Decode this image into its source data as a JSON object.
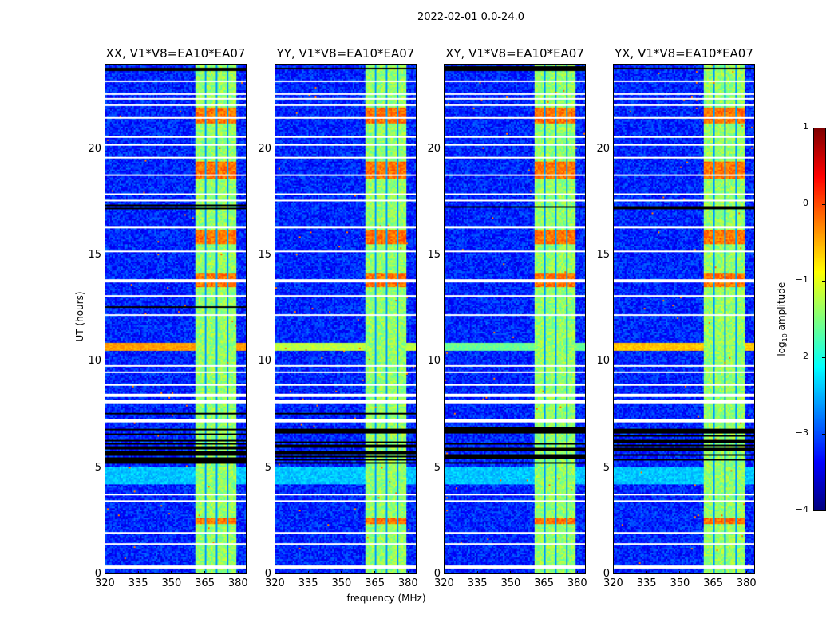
{
  "chart_data": {
    "type": "heatmap",
    "title": "2022-02-01 0.0-24.0",
    "xlabel": "frequency (MHz)",
    "ylabel": "UT (hours)",
    "xlim": [
      320,
      384
    ],
    "ylim": [
      0,
      24
    ],
    "xticks": [
      "320",
      "335",
      "350",
      "365",
      "380"
    ],
    "yticks": [
      "0",
      "5",
      "10",
      "15",
      "20"
    ],
    "panels": [
      {
        "title": "XX, V1*V8=EA10*EA07",
        "strong_line_level": -0.4
      },
      {
        "title": "YY, V1*V8=EA10*EA07",
        "strong_line_level": -1.2
      },
      {
        "title": "XY, V1*V8=EA10*EA07",
        "strong_line_level": -1.6
      },
      {
        "title": "YX, V1*V8=EA10*EA07",
        "strong_line_level": -0.6
      }
    ],
    "colorbar": {
      "label": "log10 amplitude",
      "label_main": "log",
      "label_sub": "10",
      "label_rest": " amplitude",
      "range": [
        -4,
        1
      ],
      "ticks": [
        "1",
        "0",
        "−1",
        "−2",
        "−3",
        "−4"
      ],
      "colormap": "jet"
    },
    "background_level": -3.2,
    "rfi_band_mhz": [
      360.5,
      379.5
    ],
    "rfi_band_level": -1.4,
    "rfi_subband_gaps_mhz": [
      365.5,
      370.5,
      375.5
    ],
    "strong_rfi_hours": [
      [
        2.3,
        2.6
      ],
      [
        13.5,
        14.2
      ],
      [
        15.5,
        16.2
      ],
      [
        21.2,
        22.0
      ],
      [
        18.6,
        19.4
      ]
    ],
    "broadband_rfi_hours": [
      [
        10.5,
        10.9
      ]
    ],
    "cyan_rows_hours": [
      [
        4.2,
        5.0
      ]
    ],
    "flagged_hours": [
      0.3,
      1.4,
      1.9,
      3.4,
      3.7,
      7.2,
      8.1,
      8.4,
      8.9,
      9.5,
      9.8,
      12.2,
      13.1,
      13.8,
      15.2,
      16.3,
      17.6,
      17.9,
      18.8,
      19.6,
      20.2,
      20.6,
      21.5,
      22.1,
      22.4,
      22.6,
      23.2
    ],
    "missing_hours": [
      [
        5.2,
        6.9
      ],
      [
        7.5,
        7.6
      ],
      [
        11.7,
        11.8
      ],
      [
        12.5,
        12.6
      ],
      [
        17.2,
        17.4
      ],
      [
        23.7,
        23.9
      ]
    ]
  }
}
